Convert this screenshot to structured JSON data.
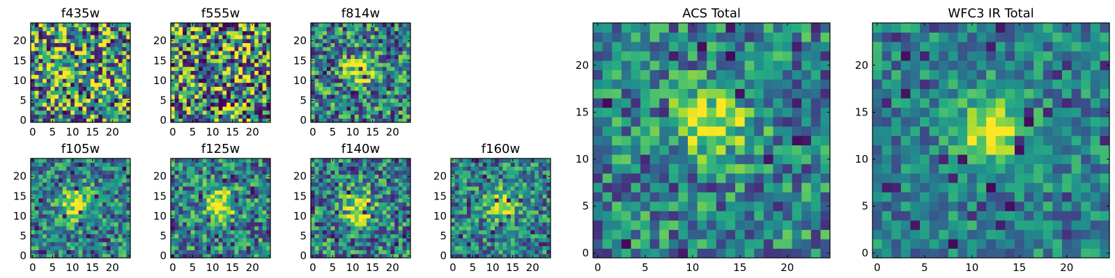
{
  "chart_data": {
    "type": "heatmap",
    "colormap": "viridis",
    "panels": [
      {
        "id": "f435w",
        "title": "f435w",
        "grid": 25,
        "xlim": [
          0,
          24
        ],
        "ylim": [
          0,
          24
        ],
        "xticks": [
          0,
          5,
          10,
          15,
          20
        ],
        "yticks": [
          0,
          5,
          10,
          15,
          20
        ],
        "source_peak": null,
        "noise": 0.55,
        "seed": 11
      },
      {
        "id": "f555w",
        "title": "f555w",
        "grid": 25,
        "xlim": [
          0,
          24
        ],
        "ylim": [
          0,
          24
        ],
        "xticks": [
          0,
          5,
          10,
          15,
          20
        ],
        "yticks": [
          0,
          5,
          10,
          15,
          20
        ],
        "source_peak": null,
        "noise": 0.6,
        "seed": 23
      },
      {
        "id": "f814w",
        "title": "f814w",
        "grid": 25,
        "xlim": [
          0,
          24
        ],
        "ylim": [
          0,
          24
        ],
        "xticks": [
          0,
          5,
          10,
          15,
          20
        ],
        "yticks": [
          0,
          5,
          10,
          15,
          20
        ],
        "source_peak": [
          12,
          13
        ],
        "noise": 0.5,
        "seed": 37
      },
      {
        "id": "f105w",
        "title": "f105w",
        "grid": 25,
        "xlim": [
          0,
          24
        ],
        "ylim": [
          0,
          24
        ],
        "xticks": [
          0,
          5,
          10,
          15,
          20
        ],
        "yticks": [
          0,
          5,
          10,
          15,
          20
        ],
        "source_peak": [
          11,
          13
        ],
        "noise": 0.4,
        "seed": 41
      },
      {
        "id": "f125w",
        "title": "f125w",
        "grid": 25,
        "xlim": [
          0,
          24
        ],
        "ylim": [
          0,
          24
        ],
        "xticks": [
          0,
          5,
          10,
          15,
          20
        ],
        "yticks": [
          0,
          5,
          10,
          15,
          20
        ],
        "source_peak": [
          12,
          13
        ],
        "noise": 0.45,
        "seed": 53
      },
      {
        "id": "f140w",
        "title": "f140w",
        "grid": 25,
        "xlim": [
          0,
          24
        ],
        "ylim": [
          0,
          24
        ],
        "xticks": [
          0,
          5,
          10,
          15,
          20
        ],
        "yticks": [
          0,
          5,
          10,
          15,
          20
        ],
        "source_peak": [
          12,
          12
        ],
        "noise": 0.45,
        "seed": 67
      },
      {
        "id": "f160w",
        "title": "f160w",
        "grid": 25,
        "xlim": [
          0,
          24
        ],
        "ylim": [
          0,
          24
        ],
        "xticks": [
          0,
          5,
          10,
          15,
          20
        ],
        "yticks": [
          0,
          5,
          10,
          15,
          20
        ],
        "source_peak": [
          12,
          13
        ],
        "noise": 0.4,
        "seed": 79
      },
      {
        "id": "acs-total",
        "title": "ACS Total",
        "grid": 25,
        "xlim": [
          0,
          24
        ],
        "ylim": [
          0,
          24
        ],
        "xticks": [
          0,
          5,
          10,
          15,
          20
        ],
        "yticks": [
          0,
          5,
          10,
          15,
          20
        ],
        "source_peak": [
          12,
          14
        ],
        "noise": 0.4,
        "seed": 97
      },
      {
        "id": "wfc3-ir-total",
        "title": "WFC3 IR Total",
        "grid": 25,
        "xlim": [
          0,
          24
        ],
        "ylim": [
          0,
          24
        ],
        "xticks": [
          0,
          5,
          10,
          15,
          20
        ],
        "yticks": [
          0,
          5,
          10,
          15,
          20
        ],
        "source_peak": [
          12,
          13
        ],
        "noise": 0.3,
        "seed": 101
      }
    ]
  }
}
